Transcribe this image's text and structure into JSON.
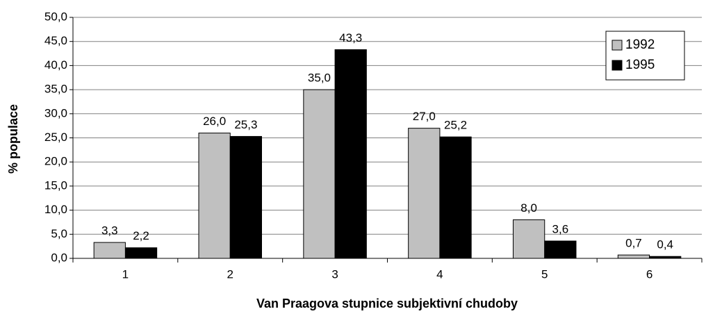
{
  "chart_data": {
    "type": "bar",
    "xlabel": "Van Praagova stupnice subjektivní chudoby",
    "ylabel": "% populace",
    "categories": [
      "1",
      "2",
      "3",
      "4",
      "5",
      "6"
    ],
    "series": [
      {
        "name": "1992",
        "color": "#c0c0c0",
        "values": [
          3.3,
          26.0,
          35.0,
          27.0,
          8.0,
          0.7
        ],
        "value_labels": [
          "3,3",
          "26,0",
          "35,0",
          "27,0",
          "8,0",
          "0,7"
        ]
      },
      {
        "name": "1995",
        "color": "#000000",
        "values": [
          2.2,
          25.3,
          43.3,
          25.2,
          3.6,
          0.4
        ],
        "value_labels": [
          "2,2",
          "25,3",
          "43,3",
          "25,2",
          "3,6",
          "0,4"
        ]
      }
    ],
    "ylim": [
      0,
      50
    ],
    "yticks": [
      {
        "value": 0,
        "label": "0,0"
      },
      {
        "value": 5,
        "label": "5,0"
      },
      {
        "value": 10,
        "label": "10,0"
      },
      {
        "value": 15,
        "label": "15,0"
      },
      {
        "value": 20,
        "label": "20,0"
      },
      {
        "value": 25,
        "label": "25,0"
      },
      {
        "value": 30,
        "label": "30,0"
      },
      {
        "value": 35,
        "label": "35,0"
      },
      {
        "value": 40,
        "label": "40,0"
      },
      {
        "value": 45,
        "label": "45,0"
      },
      {
        "value": 50,
        "label": "50,0"
      }
    ],
    "grid": true,
    "legend": "upper right"
  }
}
